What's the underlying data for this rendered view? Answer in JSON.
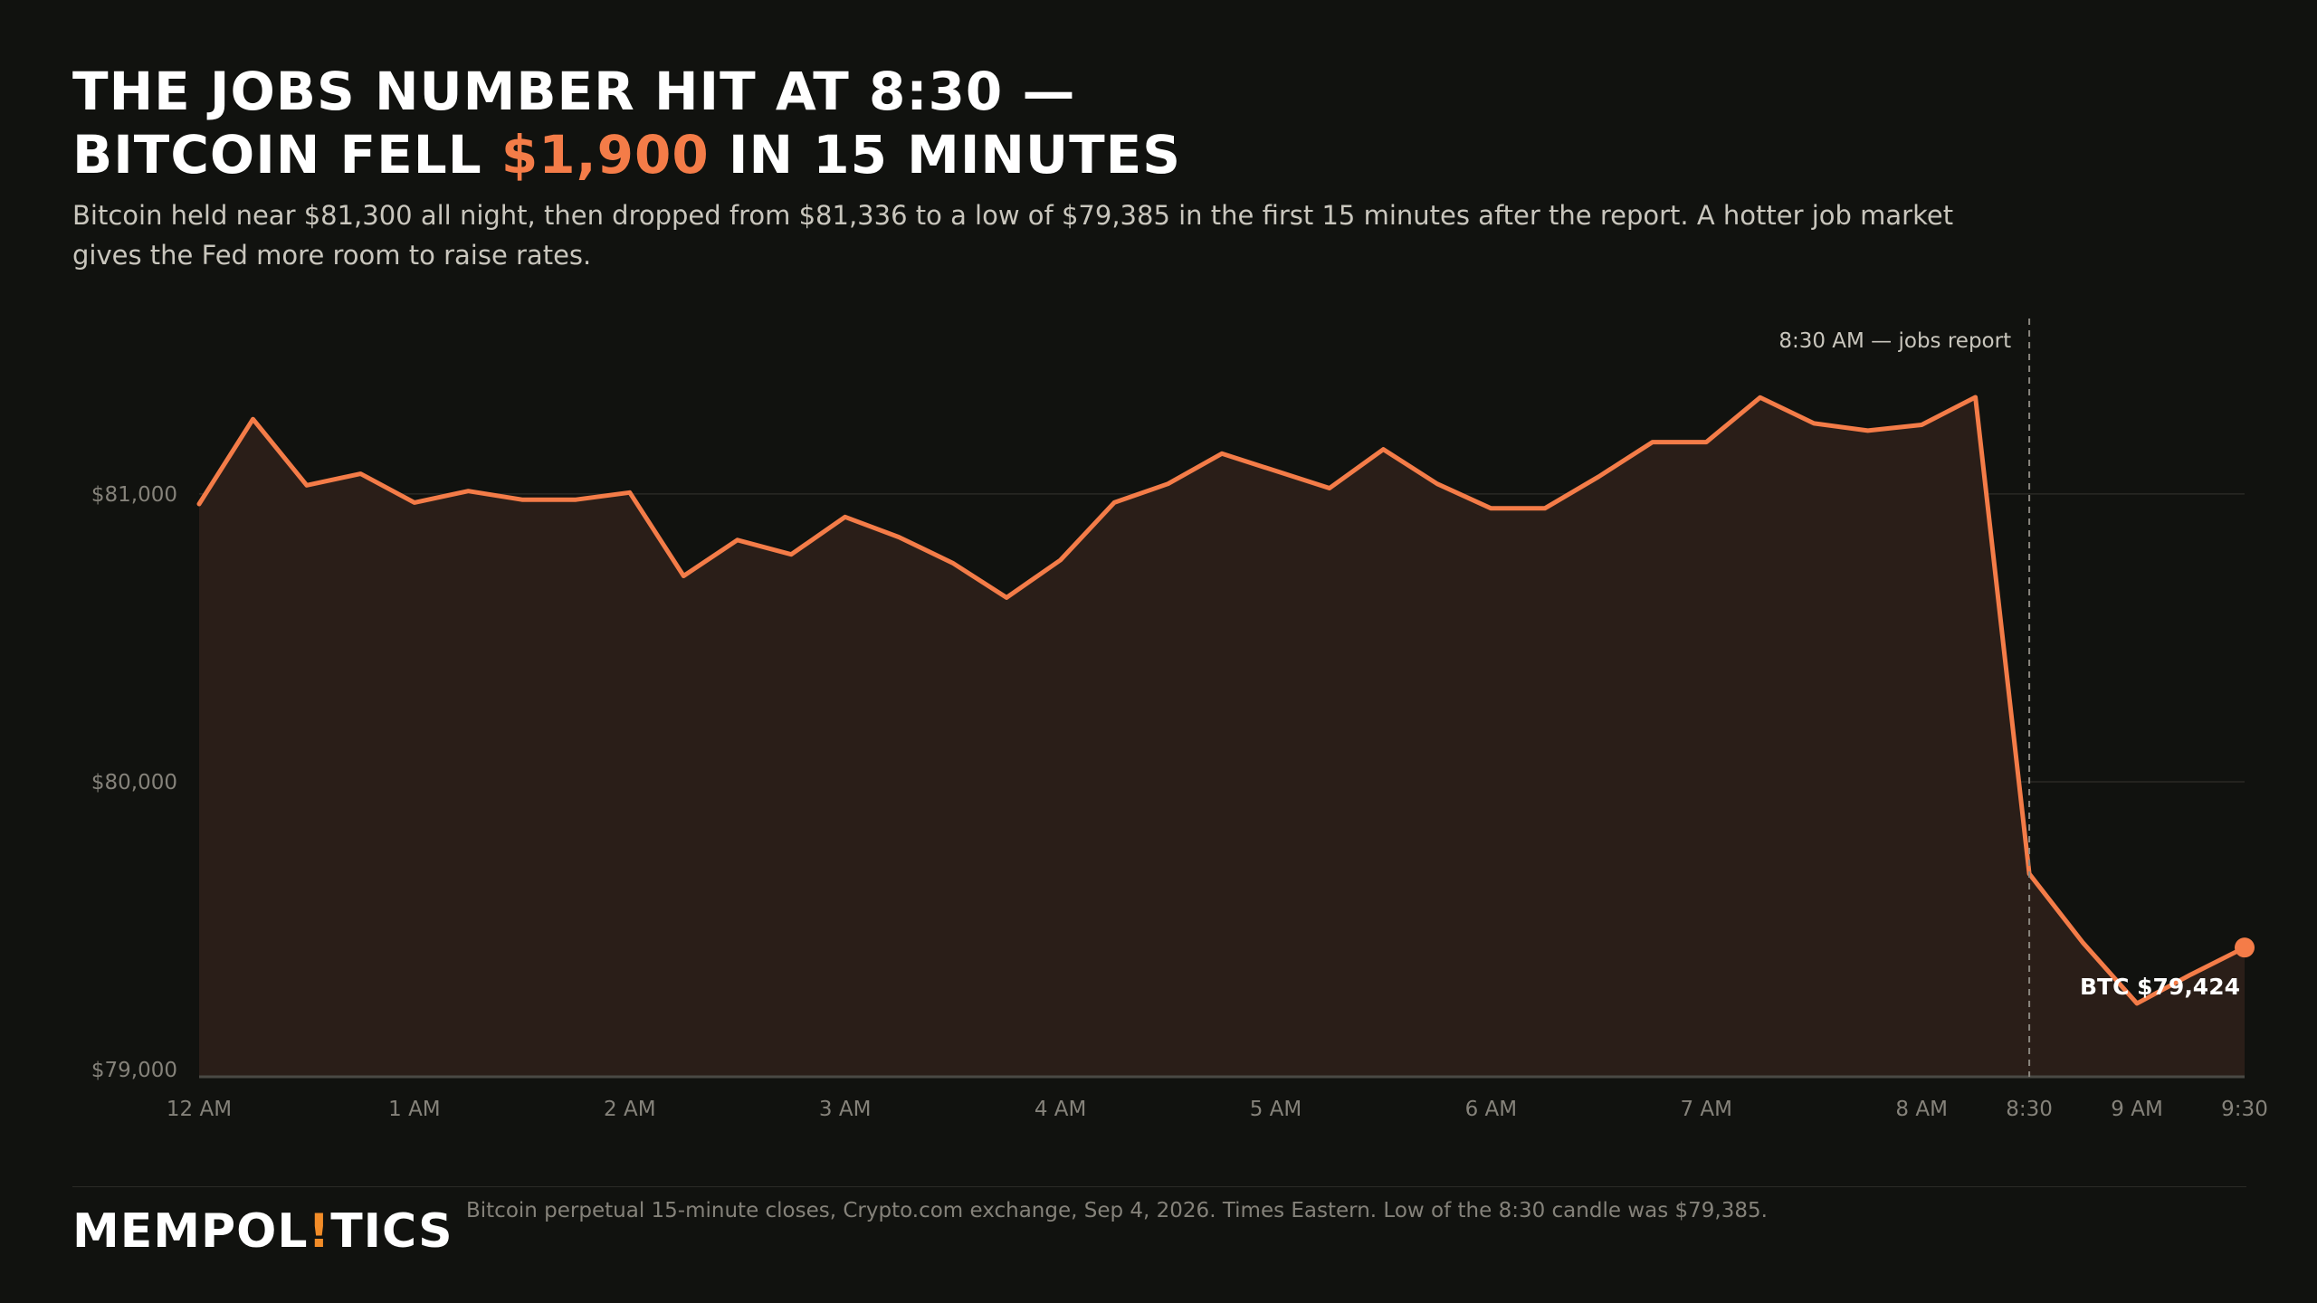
{
  "headline": {
    "line1": "THE JOBS NUMBER HIT AT 8:30 —",
    "line2_pre": "BITCOIN FELL ",
    "line2_accent": "$1,900",
    "line2_post": " IN 15 MINUTES"
  },
  "subtitle": "Bitcoin held near $81,300 all night, then dropped from $81,336 to a low of $79,385 in the first 15 minutes after the report. A hotter job market gives the Fed more room to raise rates.",
  "colors": {
    "accent": "#f47c48",
    "brand_bang": "#f28c28",
    "background": "#11120f",
    "area_fill": "#2a1e18"
  },
  "chart_data": {
    "type": "area",
    "x_unit": "hours after 12 AM (Eastern)",
    "x": [
      0,
      0.25,
      0.5,
      0.75,
      1,
      1.25,
      1.5,
      1.75,
      2,
      2.25,
      2.5,
      2.75,
      3,
      3.25,
      3.5,
      3.75,
      4,
      4.25,
      4.5,
      4.75,
      5,
      5.25,
      5.5,
      5.75,
      6,
      6.25,
      6.5,
      6.75,
      7,
      7.25,
      7.5,
      7.75,
      8,
      8.25,
      8.5,
      8.75,
      9,
      9.25,
      9.5
    ],
    "series": [
      {
        "values": [
          80965,
          81260,
          81030,
          81070,
          80970,
          81010,
          80980,
          80980,
          81005,
          80715,
          80840,
          80790,
          80920,
          80850,
          80760,
          80640,
          80770,
          80970,
          81035,
          81140,
          81080,
          81020,
          81155,
          81035,
          80950,
          80950,
          81060,
          81180,
          81180,
          81335,
          81245,
          81220,
          81240,
          81336,
          79680,
          79440,
          79230,
          79330,
          79424
        ]
      }
    ],
    "ylim": [
      78975,
      81600
    ],
    "xlim": [
      0,
      9.5
    ],
    "y_ticks": [
      {
        "value": 79000,
        "label": "$79,000"
      },
      {
        "value": 80000,
        "label": "$80,000"
      },
      {
        "value": 81000,
        "label": "$81,000"
      }
    ],
    "x_ticks": [
      {
        "value": 0,
        "label": "12 AM"
      },
      {
        "value": 1,
        "label": "1 AM"
      },
      {
        "value": 2,
        "label": "2 AM"
      },
      {
        "value": 3,
        "label": "3 AM"
      },
      {
        "value": 4,
        "label": "4 AM"
      },
      {
        "value": 5,
        "label": "5 AM"
      },
      {
        "value": 6,
        "label": "6 AM"
      },
      {
        "value": 7,
        "label": "7 AM"
      },
      {
        "value": 8,
        "label": "8 AM"
      },
      {
        "value": 8.5,
        "label": "8:30"
      },
      {
        "value": 9,
        "label": "9 AM"
      },
      {
        "value": 9.5,
        "label": "9:30"
      }
    ],
    "event_marker": {
      "x": 8.5,
      "label": "8:30 AM — jobs report"
    },
    "end_label": "BTC $79,424",
    "grid": true
  },
  "footer": {
    "brand_pre": "MEMPOL",
    "brand_bang": "!",
    "brand_post": "TICS",
    "source": "Bitcoin perpetual 15-minute closes, Crypto.com exchange, Sep 4, 2026. Times Eastern. Low of the 8:30 candle was $79,385."
  }
}
